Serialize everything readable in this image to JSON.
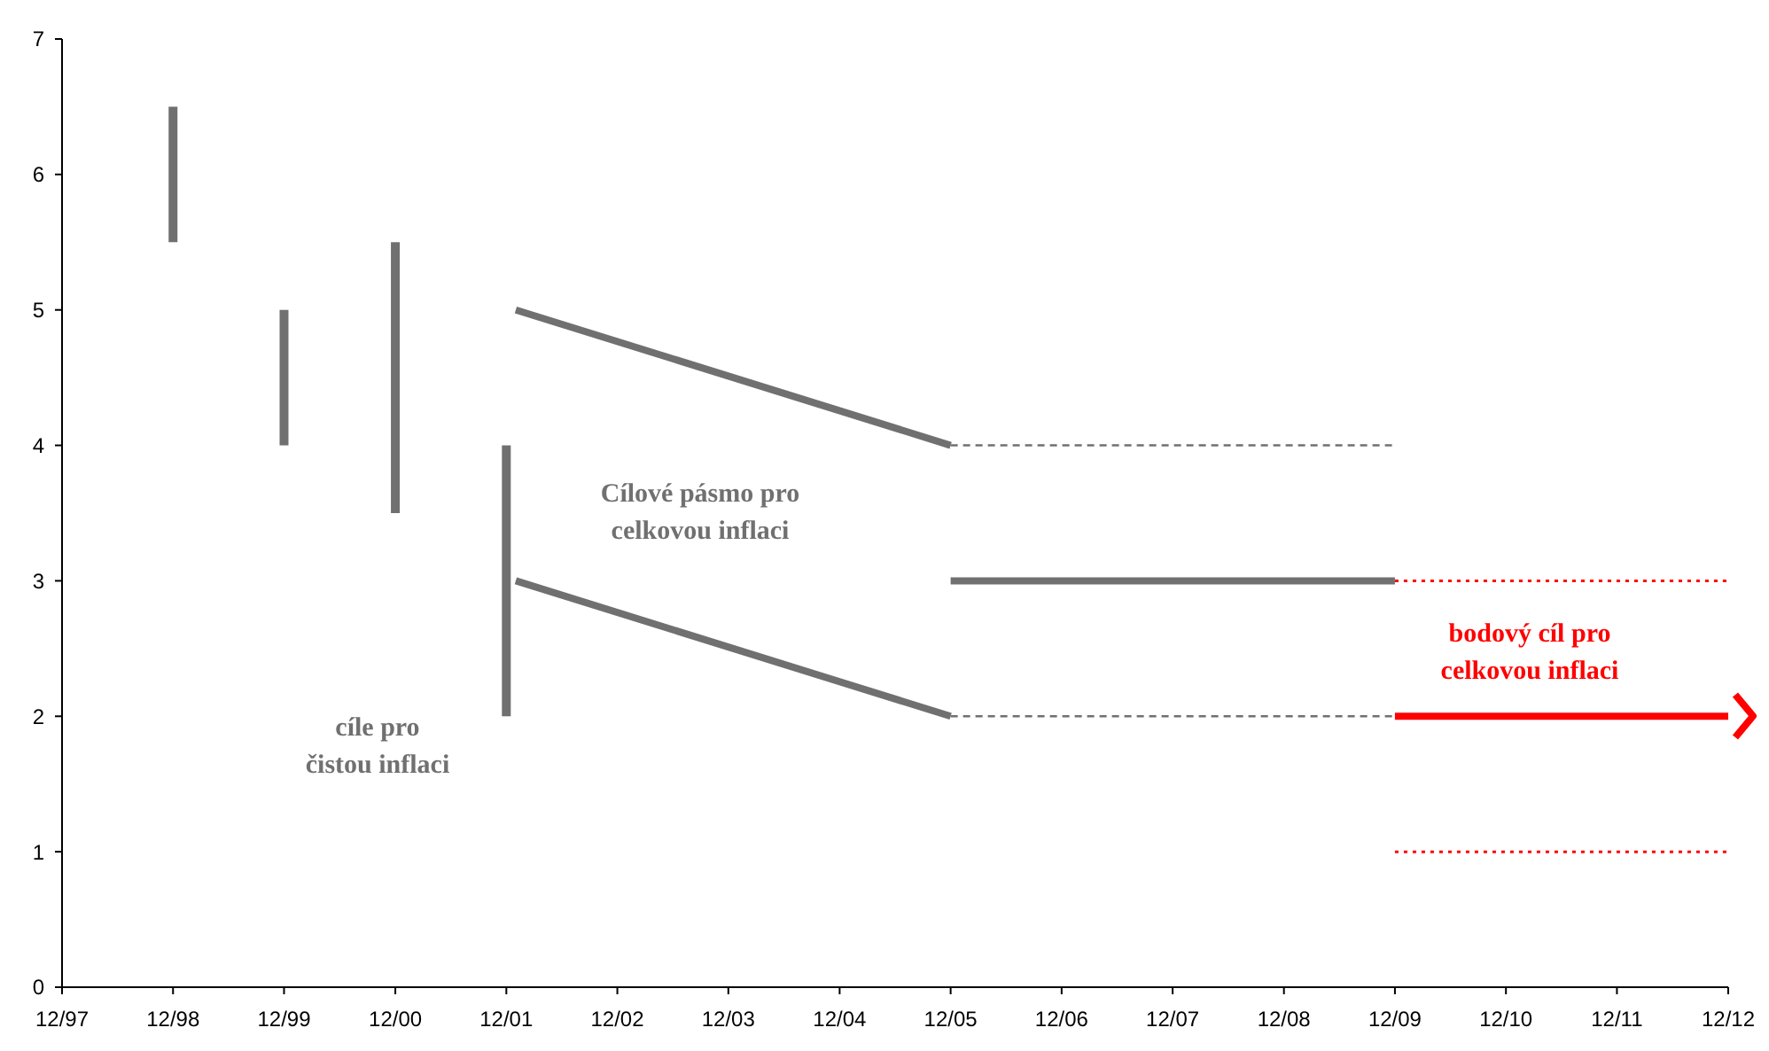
{
  "chart_data": {
    "type": "line",
    "xlim": [
      "1997-12",
      "2012-12"
    ],
    "xticks": [
      {
        "value": "1997-12",
        "label": "12/97"
      },
      {
        "value": "1998-12",
        "label": "12/98"
      },
      {
        "value": "1999-12",
        "label": "12/99"
      },
      {
        "value": "2000-12",
        "label": "12/00"
      },
      {
        "value": "2001-12",
        "label": "12/01"
      },
      {
        "value": "2002-12",
        "label": "12/02"
      },
      {
        "value": "2003-12",
        "label": "12/03"
      },
      {
        "value": "2004-12",
        "label": "12/04"
      },
      {
        "value": "2005-12",
        "label": "12/05"
      },
      {
        "value": "2006-12",
        "label": "12/06"
      },
      {
        "value": "2007-12",
        "label": "12/07"
      },
      {
        "value": "2008-12",
        "label": "12/08"
      },
      {
        "value": "2009-12",
        "label": "12/09"
      },
      {
        "value": "2010-12",
        "label": "12/10"
      },
      {
        "value": "2011-12",
        "label": "12/11"
      },
      {
        "value": "2012-12",
        "label": "12/12"
      }
    ],
    "ylim": [
      0,
      7
    ],
    "yticks": [
      0,
      1,
      2,
      3,
      4,
      5,
      6,
      7
    ],
    "grid": false,
    "series": [
      {
        "type": "bar",
        "color": "#707070",
        "x": [
          "1998-12",
          "1999-12",
          "2000-12",
          "2001-12"
        ],
        "base": [
          5.5,
          4,
          3.5,
          2
        ],
        "values": [
          1,
          1,
          2,
          2
        ]
      },
      {
        "color": "#707070",
        "line_style": "solid",
        "x": [
          "2002-01",
          "2005-12"
        ],
        "values": [
          5,
          4
        ]
      },
      {
        "color": "#707070",
        "line_style": "solid",
        "x": [
          "2002-01",
          "2005-12"
        ],
        "values": [
          3,
          2
        ]
      },
      {
        "color": "#707070",
        "line_style": "dashed",
        "x": [
          "2005-12",
          "2009-12"
        ],
        "values": [
          4,
          4
        ]
      },
      {
        "color": "#707070",
        "line_style": "dashed",
        "x": [
          "2005-12",
          "2009-12"
        ],
        "values": [
          2,
          2
        ]
      },
      {
        "color": "#707070",
        "line_style": "solid",
        "x": [
          "2005-12",
          "2009-12"
        ],
        "values": [
          3,
          3
        ]
      },
      {
        "color": "#ff0000",
        "line_style": "dotted",
        "x": [
          "2009-12",
          "2012-12"
        ],
        "values": [
          3,
          3
        ]
      },
      {
        "color": "#ff0000",
        "line_style": "dotted",
        "x": [
          "2009-12",
          "2012-12"
        ],
        "values": [
          1,
          1
        ]
      },
      {
        "color": "#ff0000",
        "line_style": "solid",
        "x": [
          "2009-12",
          "2012-12"
        ],
        "values": [
          2,
          2
        ]
      }
    ],
    "annotations": [
      "cíle pro\nčistou inflaci",
      "Cílové pásmo pro\ncelkovou inflaci",
      "bodový cíl pro\ncelkovou inflaci"
    ]
  }
}
